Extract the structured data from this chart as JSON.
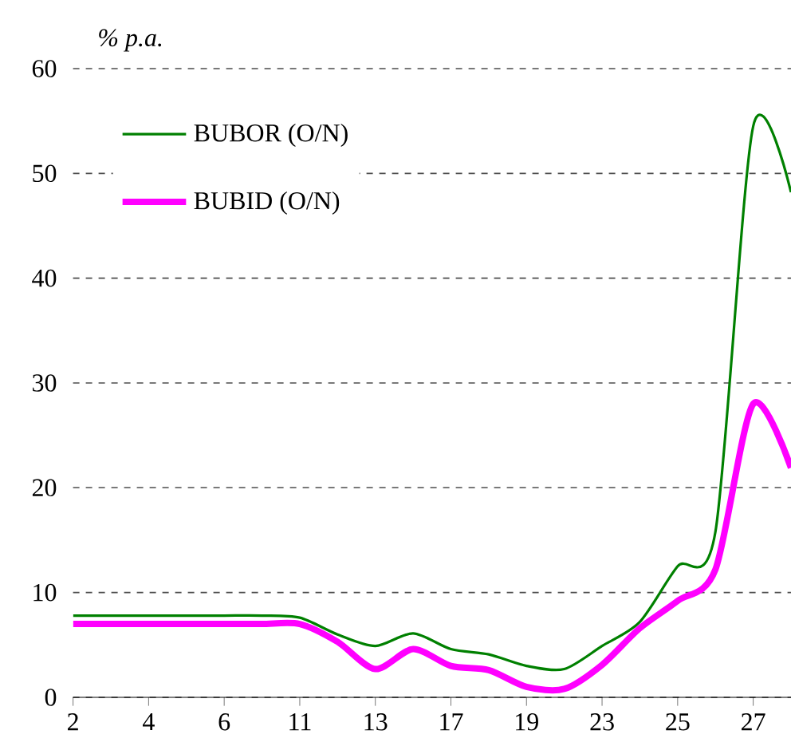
{
  "chart_data": {
    "type": "line",
    "ylabel": "% p.a.",
    "categories": [
      "2",
      null,
      "4",
      null,
      "6",
      null,
      "11",
      null,
      "13",
      null,
      "17",
      null,
      "19",
      null,
      "23",
      null,
      "25",
      null,
      "27",
      null
    ],
    "series": [
      {
        "name": "BUBOR (O/N)",
        "color": "#008000",
        "values": [
          7.8,
          7.8,
          7.8,
          7.8,
          7.8,
          7.8,
          7.6,
          6.0,
          4.9,
          6.1,
          4.6,
          4.1,
          3.0,
          2.7,
          4.9,
          7.2,
          12.5,
          15.8,
          54.5,
          48.2
        ]
      },
      {
        "name": "BUBID (O/N)",
        "color": "#ff00ff",
        "values": [
          7.0,
          7.0,
          7.0,
          7.0,
          7.0,
          7.0,
          7.0,
          5.3,
          2.7,
          4.6,
          3.0,
          2.6,
          1.0,
          0.8,
          3.1,
          6.6,
          9.2,
          12.2,
          28.0,
          21.9
        ]
      }
    ],
    "ylim": [
      0,
      60
    ],
    "yticks": [
      0,
      10,
      20,
      30,
      40,
      50,
      60
    ],
    "grid": "y",
    "legend": "top left",
    "marker": "none",
    "line_style": "solid"
  }
}
